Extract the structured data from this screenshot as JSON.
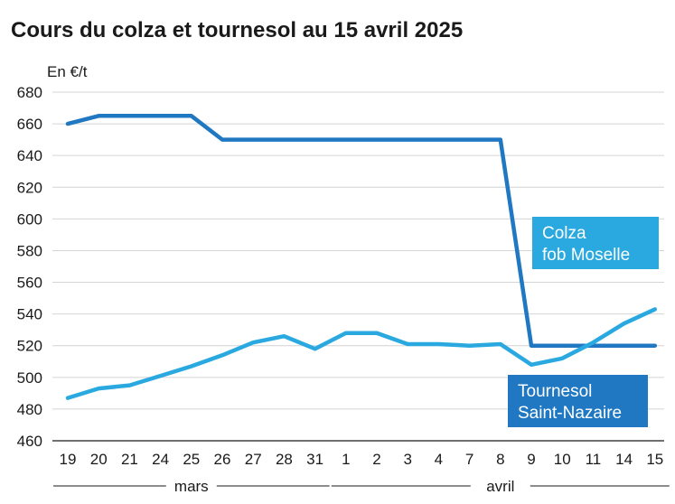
{
  "chart_data": {
    "type": "line",
    "title": "Cours du colza et tournesol au 15 avril 2025",
    "ylabel": "En €/t",
    "ylim": [
      460,
      680
    ],
    "yticks": [
      460,
      480,
      500,
      520,
      540,
      560,
      580,
      600,
      620,
      640,
      660,
      680
    ],
    "categories": [
      "19",
      "20",
      "21",
      "24",
      "25",
      "26",
      "27",
      "28",
      "31",
      "1",
      "2",
      "3",
      "4",
      "7",
      "8",
      "9",
      "10",
      "11",
      "14",
      "15"
    ],
    "month_groups": [
      {
        "label": "mars",
        "start": 0,
        "end": 8
      },
      {
        "label": "avril",
        "start": 9,
        "end": 19
      }
    ],
    "grid": "horizontal",
    "series": [
      {
        "name_lines": [
          "Colza",
          "fob Moselle"
        ],
        "color": "#1f78c1",
        "label_bg": "#29a9e0",
        "values": [
          660,
          665,
          665,
          665,
          665,
          650,
          650,
          650,
          650,
          650,
          650,
          650,
          650,
          650,
          650,
          520,
          520,
          520,
          520,
          520
        ]
      },
      {
        "name_lines": [
          "Tournesol",
          "Saint-Nazaire"
        ],
        "color": "#29a9e0",
        "label_bg": "#1f78c1",
        "values": [
          487,
          493,
          495,
          501,
          507,
          514,
          522,
          526,
          518,
          528,
          528,
          521,
          521,
          520,
          521,
          508,
          512,
          522,
          534,
          543
        ]
      }
    ]
  }
}
